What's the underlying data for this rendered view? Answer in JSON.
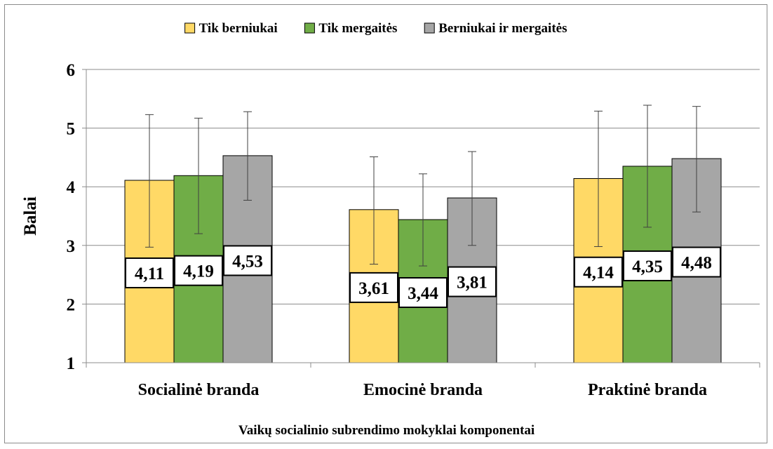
{
  "chart_data": {
    "type": "bar",
    "title": "",
    "xlabel": "Vaikų socialinio subrendimo mokyklai komponentai",
    "ylabel": "Balai",
    "ylim": [
      1,
      6
    ],
    "yticks": [
      "1",
      "2",
      "3",
      "4",
      "5",
      "6"
    ],
    "grid": true,
    "legend_position": "top",
    "categories": [
      "Socialinė branda",
      "Emocinė branda",
      "Praktinė branda"
    ],
    "series": [
      {
        "name": "Tik berniukai",
        "color": "#ffd966",
        "values": [
          4.11,
          3.61,
          4.14
        ],
        "labels": [
          "4,11",
          "3,61",
          "4,14"
        ],
        "error_low": [
          2.97,
          2.68,
          2.98
        ],
        "error_high": [
          5.23,
          4.51,
          5.29
        ]
      },
      {
        "name": "Tik mergaitės",
        "color": "#70ad47",
        "values": [
          4.19,
          3.44,
          4.35
        ],
        "labels": [
          "4,19",
          "3,44",
          "4,35"
        ],
        "error_low": [
          3.2,
          2.65,
          3.31
        ],
        "error_high": [
          5.17,
          4.22,
          5.39
        ]
      },
      {
        "name": "Berniukai ir mergaitės",
        "color": "#a6a6a6",
        "values": [
          4.53,
          3.81,
          4.48
        ],
        "labels": [
          "4,53",
          "3,81",
          "4,48"
        ],
        "error_low": [
          3.77,
          3.0,
          3.57
        ],
        "error_high": [
          5.28,
          4.6,
          5.37
        ]
      }
    ]
  }
}
